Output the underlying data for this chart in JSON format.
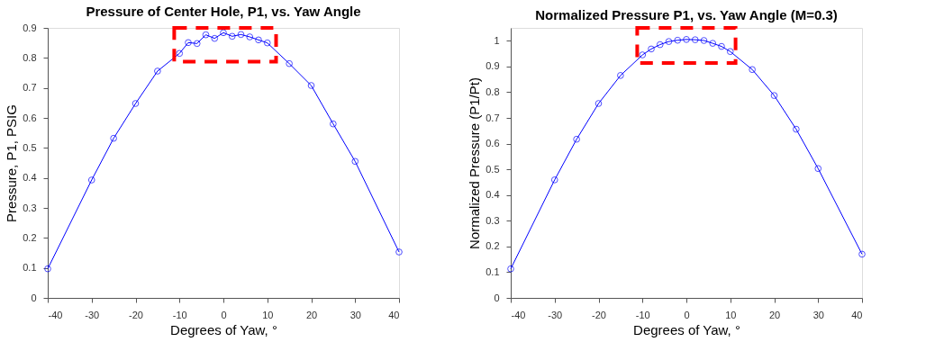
{
  "chart_data": [
    {
      "type": "line",
      "title": "Pressure of Center Hole, P1, vs. Yaw Angle",
      "xlabel": "Degrees of Yaw,  °",
      "ylabel": "Pressure, P1,  PSIG",
      "x": [
        -40,
        -30,
        -25,
        -20,
        -15,
        -10,
        -8,
        -6,
        -4,
        -2,
        0,
        2,
        4,
        6,
        8,
        10,
        15,
        20,
        25,
        30,
        40
      ],
      "series": [
        {
          "color": "#0000ff",
          "values": [
            0.097,
            0.393,
            0.532,
            0.648,
            0.756,
            0.815,
            0.851,
            0.848,
            0.877,
            0.865,
            0.884,
            0.872,
            0.878,
            0.87,
            0.86,
            0.85,
            0.781,
            0.708,
            0.58,
            0.455,
            0.153
          ]
        }
      ],
      "xlim": [
        -40,
        40
      ],
      "xticks": [
        -40,
        -30,
        -20,
        -10,
        0,
        10,
        20,
        30,
        40
      ],
      "ylim": [
        0,
        0.9
      ],
      "yticks": [
        0,
        0.1,
        0.2,
        0.3,
        0.4,
        0.5,
        0.6,
        0.7,
        0.8,
        0.9
      ],
      "grid": false,
      "marker": "circle",
      "line_style": "solid"
    },
    {
      "type": "line",
      "title": "Normalized Pressure P1, vs. Yaw Angle (M=0.3)",
      "xlabel": "Degrees of Yaw,  °",
      "ylabel": "Normalized Pressure (P1/Pt)",
      "x": [
        -40,
        -30,
        -25,
        -20,
        -15,
        -10,
        -8,
        -6,
        -4,
        -2,
        0,
        2,
        4,
        6,
        8,
        10,
        15,
        20,
        25,
        30,
        40
      ],
      "series": [
        {
          "color": "#0000ff",
          "values": [
            0.113,
            0.459,
            0.617,
            0.756,
            0.865,
            0.945,
            0.968,
            0.985,
            0.997,
            1.002,
            1.005,
            1.004,
            1.001,
            0.99,
            0.978,
            0.958,
            0.888,
            0.787,
            0.656,
            0.503,
            0.17
          ]
        }
      ],
      "xlim": [
        -40,
        40
      ],
      "xticks": [
        -40,
        -30,
        -20,
        -10,
        0,
        10,
        20,
        30,
        40
      ],
      "ylim": [
        0,
        1.05
      ],
      "yticks": [
        0,
        0.1,
        0.2,
        0.3,
        0.4,
        0.5,
        0.6,
        0.7,
        0.8,
        0.9,
        1
      ],
      "grid": false,
      "marker": "circle",
      "line_style": "solid"
    }
  ]
}
